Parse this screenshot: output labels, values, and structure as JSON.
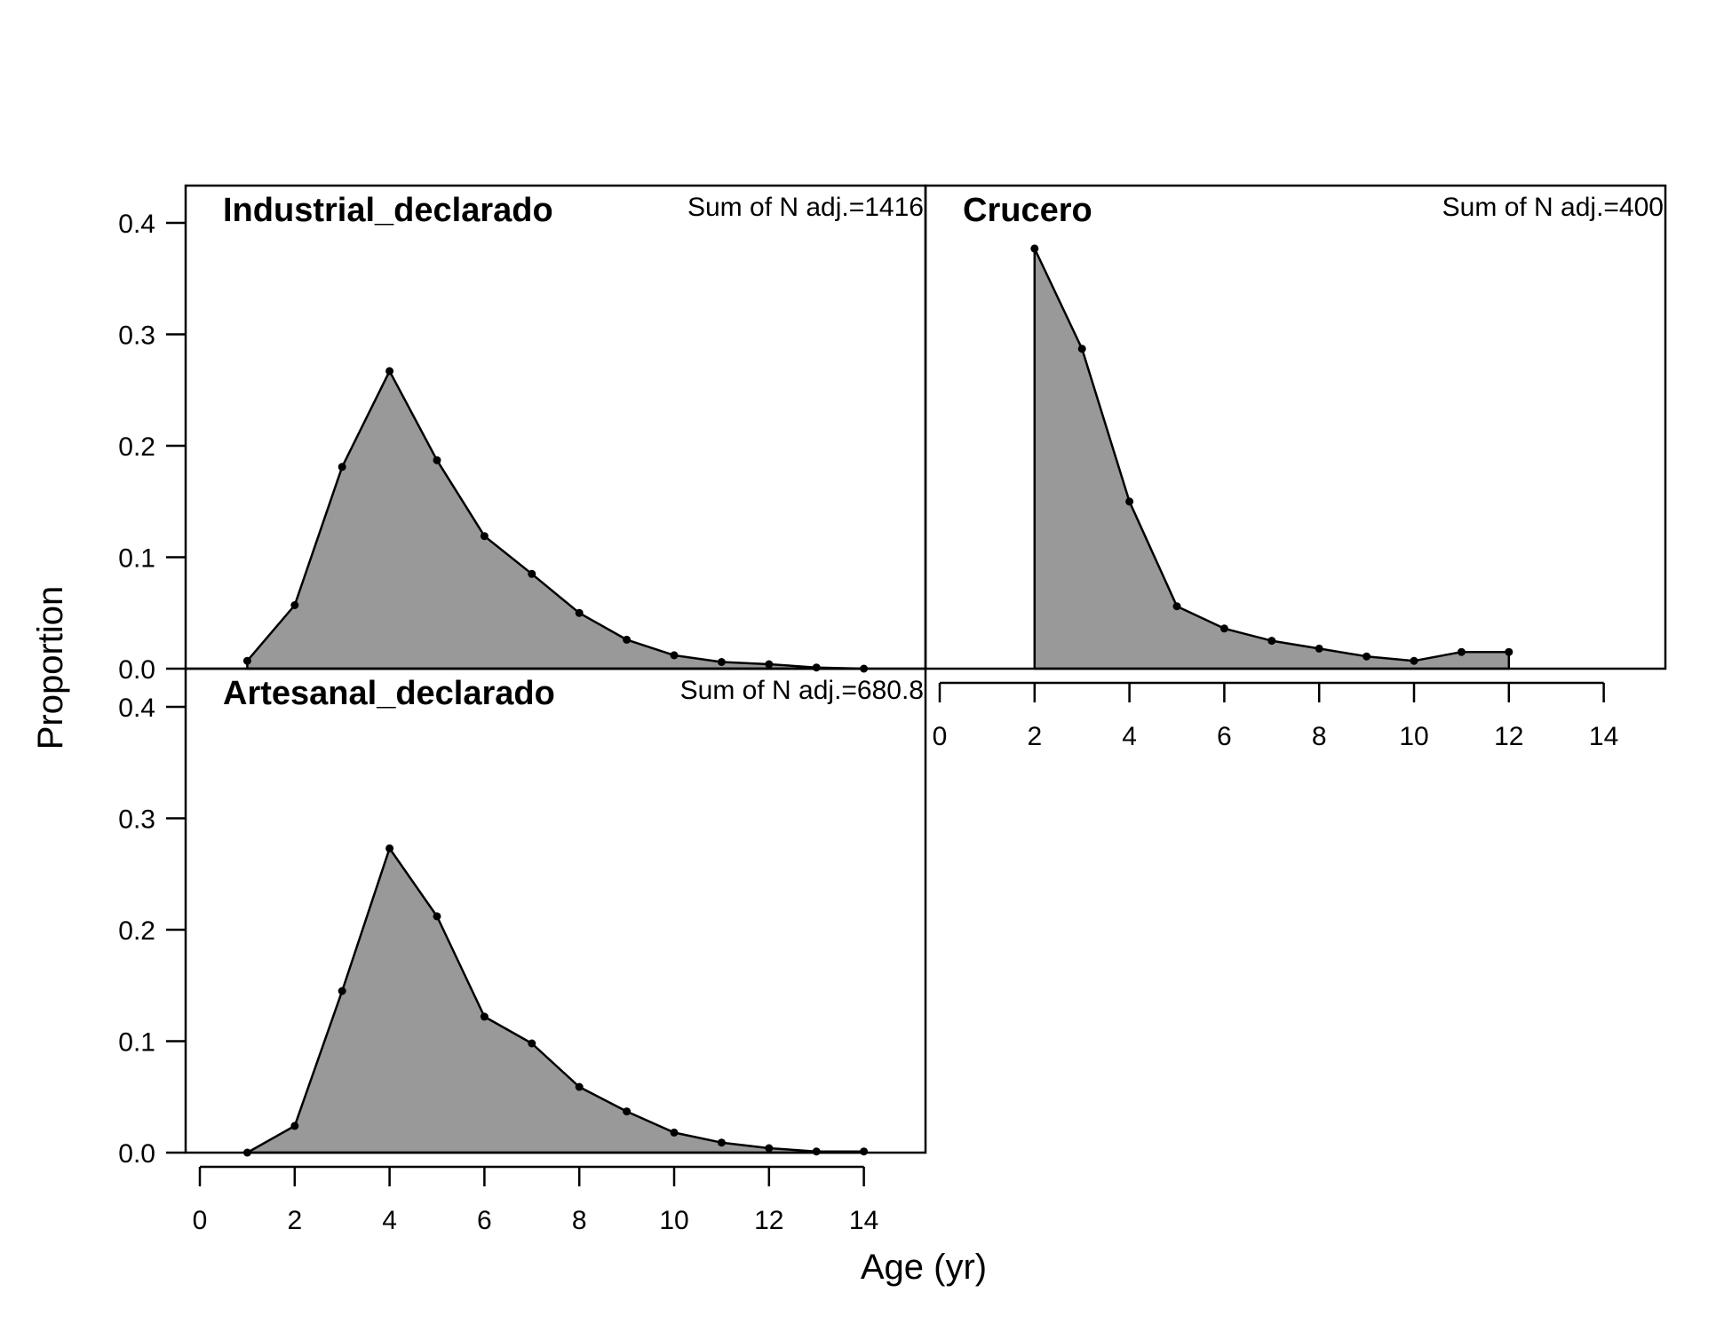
{
  "figure": {
    "xlabel": "Age (yr)",
    "ylabel": "Proportion",
    "fill_color": "#999999",
    "line_color": "#000000"
  },
  "chart_data": [
    {
      "type": "area",
      "title": "Industrial_declarado",
      "annotation": "Sum of N adj.=1416",
      "x": [
        1,
        2,
        3,
        4,
        5,
        6,
        7,
        8,
        9,
        10,
        11,
        12,
        13,
        14
      ],
      "y": [
        0.007,
        0.057,
        0.181,
        0.267,
        0.187,
        0.119,
        0.085,
        0.05,
        0.026,
        0.012,
        0.006,
        0.004,
        0.001,
        0.0
      ],
      "xlim": [
        0,
        15
      ],
      "ylim": [
        0,
        0.4
      ],
      "xticks": [
        0,
        2,
        4,
        6,
        8,
        10,
        12,
        14
      ],
      "yticks": [
        0.0,
        0.1,
        0.2,
        0.3,
        0.4
      ],
      "ytick_labels": [
        "0.0",
        "0.1",
        "0.2",
        "0.3",
        "0.4"
      ],
      "show_x_axis": false,
      "show_y_axis": true
    },
    {
      "type": "area",
      "title": "Crucero",
      "annotation": "Sum of N adj.=400",
      "x": [
        2,
        3,
        4,
        5,
        6,
        7,
        8,
        9,
        10,
        11,
        12
      ],
      "y": [
        0.377,
        0.287,
        0.15,
        0.056,
        0.036,
        0.025,
        0.018,
        0.011,
        0.007,
        0.015,
        0.015
      ],
      "xlim": [
        0,
        15
      ],
      "ylim": [
        0,
        0.4
      ],
      "xticks": [
        0,
        2,
        4,
        6,
        8,
        10,
        12,
        14
      ],
      "xtick_labels": [
        "0",
        "2",
        "4",
        "6",
        "8",
        "10",
        "12",
        "14"
      ],
      "show_x_axis": true,
      "show_y_axis": false
    },
    {
      "type": "area",
      "title": "Artesanal_declarado",
      "annotation": "Sum of N adj.=680.8",
      "x": [
        1,
        2,
        3,
        4,
        5,
        6,
        7,
        8,
        9,
        10,
        11,
        12,
        13,
        14
      ],
      "y": [
        0.0,
        0.024,
        0.145,
        0.273,
        0.212,
        0.122,
        0.098,
        0.059,
        0.037,
        0.018,
        0.009,
        0.004,
        0.001,
        0.001
      ],
      "xlim": [
        0,
        15
      ],
      "ylim": [
        0,
        0.4
      ],
      "xticks": [
        0,
        2,
        4,
        6,
        8,
        10,
        12,
        14
      ],
      "xtick_labels": [
        "0",
        "2",
        "4",
        "6",
        "8",
        "10",
        "12",
        "14"
      ],
      "yticks": [
        0.0,
        0.1,
        0.2,
        0.3,
        0.4
      ],
      "ytick_labels": [
        "0.0",
        "0.1",
        "0.2",
        "0.3",
        "0.4"
      ],
      "show_x_axis": true,
      "show_y_axis": true
    }
  ]
}
